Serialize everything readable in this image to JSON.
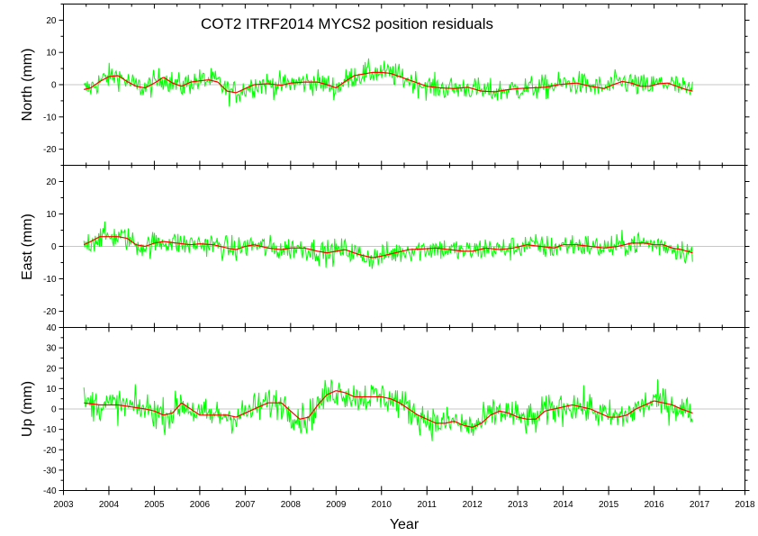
{
  "chart_data": {
    "type": "line",
    "title": "COT2  ITRF2014 MYCS2 position residuals",
    "xlabel": "Year",
    "xlim": [
      2003,
      2018
    ],
    "x_ticks": [
      2003,
      2004,
      2005,
      2006,
      2007,
      2008,
      2009,
      2010,
      2011,
      2012,
      2013,
      2014,
      2015,
      2016,
      2017,
      2018
    ],
    "colors": {
      "raw": "#00ff00",
      "smooth": "#ff0000",
      "zero": "#b4b4b4",
      "frame": "#000000"
    },
    "panels": [
      {
        "name": "north",
        "ylabel": "North (mm)",
        "ylim": [
          -25,
          25
        ],
        "y_ticks": [
          -20,
          -10,
          0,
          10,
          20
        ],
        "data_span": [
          2003.45,
          2016.85
        ],
        "series": [
          {
            "name": "smoothed",
            "x": [
              2003.45,
              2003.6,
              2003.8,
              2004.0,
              2004.2,
              2004.4,
              2004.6,
              2004.8,
              2005.0,
              2005.2,
              2005.4,
              2005.6,
              2005.8,
              2006.0,
              2006.2,
              2006.4,
              2006.6,
              2006.8,
              2007.0,
              2007.2,
              2007.5,
              2007.8,
              2008.0,
              2008.3,
              2008.6,
              2008.8,
              2009.0,
              2009.2,
              2009.4,
              2009.6,
              2009.8,
              2010.0,
              2010.2,
              2010.4,
              2010.6,
              2010.8,
              2011.0,
              2011.3,
              2011.6,
              2011.9,
              2012.2,
              2012.5,
              2012.8,
              2013.0,
              2013.3,
              2013.6,
              2013.9,
              2014.1,
              2014.3,
              2014.6,
              2014.9,
              2015.1,
              2015.3,
              2015.5,
              2015.7,
              2015.9,
              2016.1,
              2016.3,
              2016.5,
              2016.7,
              2016.85
            ],
            "y": [
              -1.5,
              -1.0,
              1.0,
              2.5,
              2.8,
              1.0,
              -0.5,
              -1.0,
              0.5,
              2.3,
              0.5,
              -0.5,
              0.8,
              1.2,
              1.5,
              0.8,
              -2.0,
              -2.5,
              -1.2,
              0,
              0.3,
              -0.2,
              0.5,
              0.8,
              0.8,
              0,
              -1.0,
              1.0,
              2.8,
              3.3,
              3.8,
              3.8,
              3.5,
              2.5,
              1.5,
              0.5,
              -0.5,
              -1.0,
              -1.2,
              -0.8,
              -2.0,
              -2.2,
              -1.5,
              -1.2,
              -1.0,
              -0.8,
              0,
              0.3,
              0.5,
              -0.5,
              -1.2,
              0,
              1.0,
              0.5,
              -0.5,
              -0.5,
              0.3,
              0.5,
              -0.5,
              -1.5,
              -2.0
            ]
          }
        ]
      },
      {
        "name": "east",
        "ylabel": "East (mm)",
        "ylim": [
          -25,
          25
        ],
        "y_ticks": [
          -20,
          -10,
          0,
          10,
          20
        ],
        "data_span": [
          2003.45,
          2016.85
        ],
        "series": [
          {
            "name": "smoothed",
            "x": [
              2003.45,
              2003.6,
              2003.8,
              2004.0,
              2004.2,
              2004.4,
              2004.6,
              2004.8,
              2005.0,
              2005.2,
              2005.5,
              2005.8,
              2006.0,
              2006.3,
              2006.6,
              2006.8,
              2007.0,
              2007.2,
              2007.5,
              2007.8,
              2008.0,
              2008.3,
              2008.6,
              2008.8,
              2009.0,
              2009.2,
              2009.5,
              2009.8,
              2010.0,
              2010.3,
              2010.6,
              2010.9,
              2011.2,
              2011.5,
              2011.8,
              2012.0,
              2012.3,
              2012.6,
              2012.9,
              2013.2,
              2013.5,
              2013.8,
              2014.0,
              2014.3,
              2014.6,
              2014.9,
              2015.2,
              2015.5,
              2015.8,
              2016.0,
              2016.2,
              2016.4,
              2016.6,
              2016.85
            ],
            "y": [
              0.5,
              1.5,
              3.0,
              3.0,
              3.0,
              2.5,
              0.5,
              0,
              1.0,
              1.5,
              1.0,
              0.5,
              0.8,
              0.5,
              -0.5,
              -1.0,
              0,
              0.5,
              -0.5,
              -1.0,
              -0.5,
              -0.5,
              -1.5,
              -2.0,
              -1.5,
              -1.0,
              -2.5,
              -3.5,
              -3.0,
              -2.0,
              -1.0,
              -0.8,
              -0.5,
              -1.0,
              -1.5,
              -1.5,
              -0.5,
              -1.0,
              -0.5,
              0.5,
              0,
              -0.5,
              0.5,
              0.5,
              0,
              -0.5,
              0,
              1.0,
              1.0,
              0.5,
              0.5,
              -0.5,
              -1.0,
              -2.0
            ]
          }
        ]
      },
      {
        "name": "up",
        "ylabel": "Up (mm)",
        "ylim": [
          -40,
          40
        ],
        "y_ticks": [
          -40,
          -30,
          -20,
          -10,
          0,
          10,
          20,
          30,
          40
        ],
        "data_span": [
          2003.45,
          2016.85
        ],
        "series": [
          {
            "name": "smoothed",
            "x": [
              2003.45,
              2003.8,
              2004.2,
              2004.5,
              2004.8,
              2005.0,
              2005.2,
              2005.4,
              2005.6,
              2005.8,
              2006.0,
              2006.3,
              2006.6,
              2006.8,
              2007.0,
              2007.2,
              2007.5,
              2007.8,
              2008.0,
              2008.2,
              2008.4,
              2008.6,
              2008.8,
              2009.0,
              2009.2,
              2009.4,
              2009.6,
              2009.8,
              2010.0,
              2010.2,
              2010.4,
              2010.6,
              2010.8,
              2011.0,
              2011.2,
              2011.4,
              2011.6,
              2011.8,
              2012.0,
              2012.2,
              2012.4,
              2012.6,
              2012.8,
              2013.0,
              2013.2,
              2013.4,
              2013.6,
              2013.8,
              2014.0,
              2014.2,
              2014.4,
              2014.6,
              2014.8,
              2015.0,
              2015.2,
              2015.4,
              2015.6,
              2015.8,
              2016.0,
              2016.2,
              2016.4,
              2016.6,
              2016.85
            ],
            "y": [
              3,
              2,
              2,
              1,
              0,
              -1,
              -3,
              -2,
              3,
              0,
              -3,
              -3,
              -3,
              -4,
              -2,
              0,
              3,
              3,
              -1,
              -5,
              -4,
              2,
              7,
              9,
              8,
              6,
              6,
              6,
              6,
              5,
              3,
              0,
              -3,
              -5,
              -7,
              -7,
              -6,
              -8,
              -9,
              -7,
              -3,
              -1,
              -2,
              -4,
              -5,
              -5,
              -1,
              0,
              1,
              2,
              1,
              0,
              -2,
              -4,
              -4,
              -3,
              0,
              2,
              4,
              3,
              2,
              0,
              -2
            ]
          }
        ]
      }
    ]
  }
}
